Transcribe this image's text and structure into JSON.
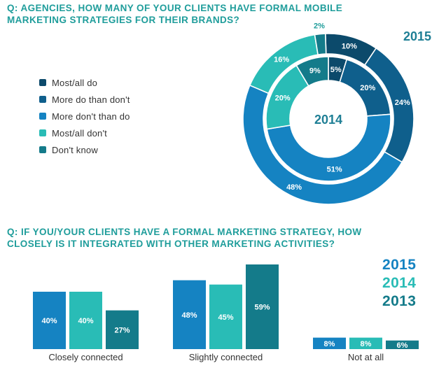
{
  "q1": {
    "title_lines": [
      "Q: AGENCIES, HOW MANY OF YOUR CLIENTS HAVE FORMAL MOBILE",
      "MARKETING STRATEGIES FOR THEIR BRANDS?"
    ]
  },
  "q2": {
    "title_lines": [
      "Q: IF YOU/YOUR CLIENTS HAVE A FORMAL MARKETING STRATEGY, HOW",
      "CLOSELY IS IT INTEGRATED WITH OTHER MARKETING ACTIVITIES?"
    ]
  },
  "colors": {
    "title": "#1f9d9b",
    "most_all_do": "#0c4a6b",
    "more_do": "#0f5f8c",
    "more_dont": "#1583c2",
    "most_all_dont": "#29bcb6",
    "dont_know": "#147b8a"
  },
  "chart_data": [
    {
      "type": "pie",
      "variant": "nested-donut",
      "title": "Q: AGENCIES, HOW MANY OF YOUR CLIENTS HAVE FORMAL MOBILE MARKETING STRATEGIES FOR THEIR BRANDS?",
      "categories": [
        "Most/all do",
        "More do than don't",
        "More don't than do",
        "Most/all don't",
        "Don't know"
      ],
      "series": [
        {
          "name": "2015",
          "ring": "outer",
          "values": [
            10,
            24,
            48,
            16,
            2
          ],
          "labels": [
            "10%",
            "24%",
            "48%",
            "16%",
            "2%"
          ]
        },
        {
          "name": "2014",
          "ring": "inner",
          "values": [
            5,
            20,
            51,
            20,
            9
          ],
          "labels": [
            "5%",
            "20%",
            "51%",
            "20%",
            "9%"
          ]
        }
      ],
      "year_labels": {
        "outer": "2015",
        "inner": "2014"
      },
      "legend": "left"
    },
    {
      "type": "bar",
      "title": "Q: IF YOU/YOUR CLIENTS HAVE A FORMAL MARKETING STRATEGY, HOW CLOSELY IS IT INTEGRATED WITH OTHER MARKETING ACTIVITIES?",
      "categories": [
        "Closely connected",
        "Slightly connected",
        "Not at all"
      ],
      "series": [
        {
          "name": "2015",
          "values": [
            40,
            48,
            8
          ],
          "labels": [
            "40%",
            "48%",
            "8%"
          ]
        },
        {
          "name": "2014",
          "values": [
            40,
            45,
            8
          ],
          "labels": [
            "40%",
            "45%",
            "8%"
          ]
        },
        {
          "name": "2013",
          "values": [
            27,
            59,
            6
          ],
          "labels": [
            "27%",
            "59%",
            "6%"
          ]
        }
      ],
      "ylim": [
        0,
        59
      ],
      "legend": "right"
    }
  ]
}
